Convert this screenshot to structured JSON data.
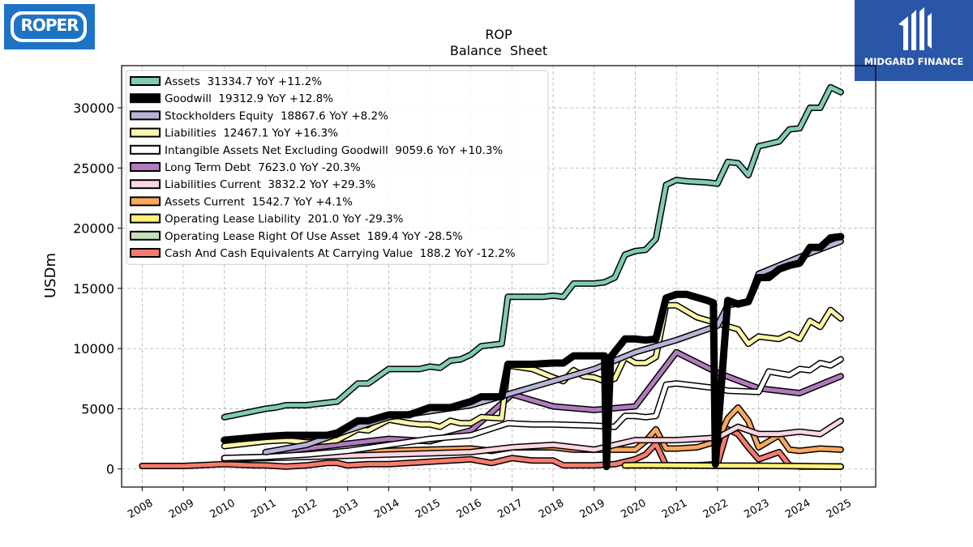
{
  "logos": {
    "left_text": "ROPER",
    "right_text": "MIDGARD FINANCE"
  },
  "chart_data": {
    "type": "line",
    "title": "ROP",
    "subtitle": "Balance  Sheet",
    "xlabel": "",
    "ylabel": "USDm",
    "xlim": [
      2007.5,
      2025.85
    ],
    "ylim": [
      -1500,
      33500
    ],
    "yticks": [
      0,
      5000,
      10000,
      15000,
      20000,
      25000,
      30000
    ],
    "xticks": [
      "2008",
      "2009",
      "2010",
      "2011",
      "2012",
      "2013",
      "2014",
      "2015",
      "2016",
      "2017",
      "2018",
      "2019",
      "2020",
      "2021",
      "2022",
      "2023",
      "2024",
      "2025"
    ],
    "grid": true,
    "legend_position": "top-left",
    "series": [
      {
        "name": "Assets  31334.7 YoY +11.2%",
        "color": "#80cbb8",
        "width": 5,
        "x": [
          2010,
          2011,
          2011.25,
          2011.5,
          2012,
          2012.5,
          2012.75,
          2013.25,
          2013.5,
          2014,
          2014.5,
          2014.75,
          2015,
          2015.25,
          2015.5,
          2015.75,
          2016,
          2016.25,
          2016.75,
          2016.9,
          2017.25,
          2017.75,
          2018,
          2018.25,
          2018.5,
          2018.75,
          2019,
          2019.25,
          2019.5,
          2019.75,
          2020,
          2020.25,
          2020.5,
          2020.75,
          2021,
          2021.25,
          2021.75,
          2022,
          2022.25,
          2022.5,
          2022.75,
          2023,
          2023.25,
          2023.5,
          2023.75,
          2024,
          2024.25,
          2024.5,
          2024.75,
          2025
        ],
        "y": [
          4300,
          5000,
          5100,
          5300,
          5300,
          5500,
          5600,
          7100,
          7100,
          8300,
          8300,
          8300,
          8500,
          8400,
          9000,
          9100,
          9500,
          10200,
          10400,
          14300,
          14300,
          14300,
          14400,
          14300,
          15400,
          15400,
          15400,
          15500,
          15900,
          17800,
          18100,
          18200,
          19100,
          23600,
          24000,
          23900,
          23800,
          23700,
          25500,
          25400,
          24400,
          26800,
          27000,
          27200,
          28200,
          28300,
          30000,
          30000,
          31700,
          31300
        ]
      },
      {
        "name": "Goodwill  19312.9 YoY +12.8%",
        "color": "#000000",
        "width": 9,
        "x": [
          2010,
          2011,
          2011.5,
          2012,
          2012.5,
          2012.75,
          2013.25,
          2013.5,
          2014,
          2014.5,
          2015,
          2015.5,
          2016,
          2016.25,
          2016.75,
          2016.9,
          2017.5,
          2018,
          2018.25,
          2018.5,
          2018.75,
          2019,
          2019.25,
          2019.3,
          2019.4,
          2019.75,
          2020,
          2020.25,
          2020.5,
          2020.75,
          2021,
          2021.25,
          2021.75,
          2021.9,
          2021.95,
          2022.25,
          2022.5,
          2022.75,
          2023,
          2023.25,
          2023.5,
          2023.75,
          2024,
          2024.25,
          2024.5,
          2024.75,
          2025
        ],
        "y": [
          2400,
          2700,
          2800,
          2800,
          2800,
          3000,
          4000,
          4000,
          4500,
          4500,
          5100,
          5100,
          5600,
          6000,
          6000,
          8700,
          8700,
          8800,
          8800,
          9400,
          9400,
          9400,
          9400,
          200,
          9300,
          10800,
          10800,
          10700,
          10800,
          14200,
          14500,
          14500,
          14000,
          13800,
          400,
          14000,
          13700,
          13900,
          15900,
          15900,
          16600,
          16900,
          17100,
          18400,
          18400,
          19200,
          19300
        ]
      },
      {
        "name": "Stockholders Equity  18867.6 YoY +8.2%",
        "color": "#b8b3d8",
        "width": 5,
        "x": [
          2011,
          2012,
          2013,
          2014,
          2015,
          2016,
          2017,
          2018,
          2019,
          2020,
          2021,
          2022,
          2022.25,
          2022.75,
          2023,
          2024,
          2025
        ],
        "y": [
          1400,
          2000,
          3200,
          4300,
          4800,
          5300,
          6300,
          7300,
          8300,
          9700,
          10700,
          11900,
          13600,
          13900,
          16200,
          17600,
          18900
        ]
      },
      {
        "name": "Liabilities  12467.1 YoY +16.3%",
        "color": "#fdf5a8",
        "width": 5,
        "x": [
          2010,
          2011,
          2011.5,
          2012,
          2012.5,
          2012.75,
          2013.25,
          2013.5,
          2014,
          2014.5,
          2014.75,
          2015,
          2015.25,
          2015.5,
          2015.75,
          2016,
          2016.25,
          2016.75,
          2016.9,
          2017.5,
          2018,
          2018.25,
          2018.5,
          2018.75,
          2019,
          2019.25,
          2019.5,
          2019.75,
          2020,
          2020.25,
          2020.5,
          2020.75,
          2021,
          2021.5,
          2022,
          2022.5,
          2022.75,
          2023,
          2023.5,
          2023.75,
          2024,
          2024.25,
          2024.5,
          2024.75,
          2025
        ],
        "y": [
          1900,
          2300,
          2400,
          2200,
          2300,
          2400,
          3300,
          3200,
          4100,
          3800,
          3700,
          3700,
          3500,
          4000,
          3800,
          3800,
          4300,
          4200,
          8600,
          8300,
          7600,
          7300,
          8200,
          7700,
          7600,
          7300,
          7500,
          9300,
          8800,
          8800,
          9300,
          13600,
          13600,
          12600,
          12100,
          11600,
          10400,
          11000,
          10800,
          11200,
          10800,
          12300,
          11800,
          13200,
          12500
        ]
      },
      {
        "name": "Intangible Assets Net Excluding Goodwill  9059.6 YoY +10.3%",
        "color": "#ffffff",
        "width": 5,
        "x": [
          2010,
          2011,
          2012,
          2013,
          2014,
          2015,
          2016,
          2016.9,
          2017.5,
          2018,
          2019,
          2019.5,
          2019.75,
          2020,
          2020.25,
          2020.5,
          2020.75,
          2021,
          2022,
          2022.25,
          2023,
          2023.25,
          2023.75,
          2024,
          2024.25,
          2024.5,
          2024.75,
          2025
        ],
        "y": [
          900,
          1000,
          1200,
          1500,
          2000,
          2500,
          2800,
          3800,
          3700,
          3700,
          3600,
          3500,
          4400,
          4400,
          4300,
          4400,
          7000,
          7100,
          6700,
          6500,
          6400,
          8100,
          7800,
          8300,
          8200,
          8800,
          8600,
          9100
        ]
      },
      {
        "name": "Long Term Debt  7623.0 YoY -20.3%",
        "color": "#b07cbc",
        "width": 5,
        "x": [
          2011,
          2012,
          2013,
          2014,
          2015,
          2016,
          2017,
          2018,
          2019,
          2020,
          2021,
          2022,
          2023,
          2024,
          2025
        ],
        "y": [
          1300,
          1700,
          2100,
          2500,
          2300,
          3200,
          6200,
          5200,
          4900,
          5200,
          9700,
          8000,
          6700,
          6300,
          7700
        ]
      },
      {
        "name": "Liabilities Current  3832.2 YoY +29.3%",
        "color": "#fcd6e2",
        "width": 5,
        "x": [
          2010,
          2011,
          2012,
          2013,
          2014,
          2015,
          2016,
          2017,
          2018,
          2019,
          2020,
          2021,
          2022,
          2022.5,
          2023,
          2023.5,
          2024,
          2024.5,
          2025
        ],
        "y": [
          800,
          900,
          1000,
          1100,
          1200,
          1300,
          1400,
          1800,
          2000,
          1600,
          2400,
          2400,
          2600,
          3500,
          2900,
          2900,
          3100,
          2900,
          4000
        ]
      },
      {
        "name": "Assets Current  1542.7 YoY +4.1%",
        "color": "#f9a85e",
        "width": 5,
        "x": [
          2010,
          2011,
          2012,
          2013,
          2014,
          2015,
          2016,
          2016.5,
          2017,
          2017.5,
          2018,
          2018.5,
          2019,
          2019.5,
          2020,
          2020.25,
          2020.5,
          2020.75,
          2021,
          2021.5,
          2022,
          2022.25,
          2022.5,
          2022.75,
          2023,
          2023.5,
          2023.75,
          2024,
          2024.5,
          2025
        ],
        "y": [
          900,
          1000,
          1100,
          1300,
          1500,
          1600,
          1700,
          1500,
          1800,
          1800,
          1800,
          1600,
          1600,
          1600,
          1600,
          2300,
          3300,
          1700,
          1700,
          1800,
          2300,
          4200,
          5100,
          4000,
          1800,
          2800,
          1600,
          1500,
          1700,
          1600
        ]
      },
      {
        "name": "Operating Lease Liability  201.0 YoY -29.3%",
        "color": "#fff176",
        "width": 5,
        "x": [
          2019.75,
          2020,
          2021,
          2022,
          2023,
          2024,
          2025
        ],
        "y": [
          300,
          320,
          300,
          280,
          270,
          240,
          200
        ]
      },
      {
        "name": "Operating Lease Right Of Use Asset  189.4 YoY -28.5%",
        "color": "#c5e1bc",
        "width": 5,
        "x": [
          2019.75,
          2020,
          2021,
          2022,
          2023,
          2024,
          2025
        ],
        "y": [
          290,
          300,
          290,
          270,
          260,
          230,
          190
        ]
      },
      {
        "name": "Cash And Cash Equivalents At Carrying Value  188.2 YoY -12.2%",
        "color": "#f47c6e",
        "width": 5,
        "x": [
          2008,
          2009,
          2010,
          2010.75,
          2011,
          2011.5,
          2012,
          2012.5,
          2012.75,
          2013,
          2013.5,
          2014,
          2014.5,
          2015,
          2015.5,
          2016,
          2016.5,
          2016.75,
          2017,
          2017.5,
          2018,
          2018.25,
          2018.75,
          2019,
          2019.5,
          2020,
          2020.25,
          2020.5,
          2020.75,
          2021,
          2021.5,
          2022,
          2022.25,
          2022.5,
          2022.75,
          2023,
          2023.5,
          2023.75,
          2024,
          2024.5,
          2025
        ],
        "y": [
          250,
          250,
          400,
          300,
          300,
          200,
          300,
          500,
          500,
          300,
          400,
          400,
          500,
          600,
          700,
          800,
          500,
          700,
          900,
          700,
          700,
          300,
          300,
          300,
          400,
          800,
          1200,
          2100,
          300,
          300,
          300,
          400,
          3300,
          2900,
          1800,
          800,
          1400,
          300,
          200,
          200,
          200
        ]
      }
    ]
  }
}
